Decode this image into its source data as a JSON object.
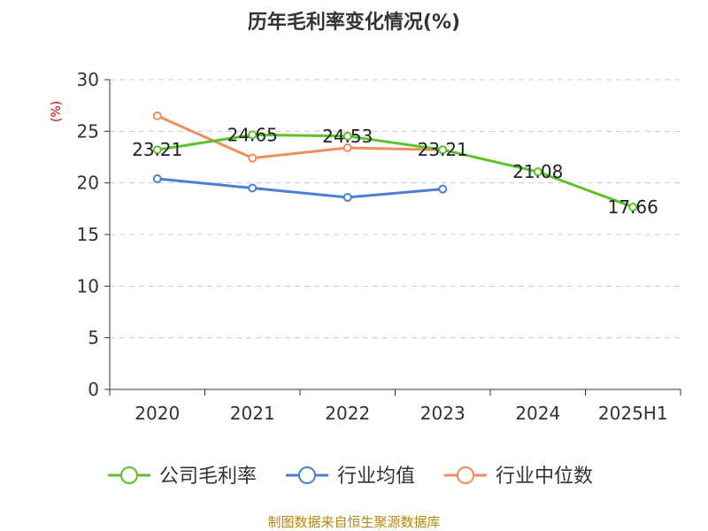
{
  "chart_data": {
    "type": "line",
    "title": "历年毛利率变化情况(%)",
    "ylabel": "(%)",
    "categories": [
      "2020",
      "2021",
      "2022",
      "2023",
      "2024",
      "2025H1"
    ],
    "ylim": [
      0,
      30
    ],
    "yticks": [
      0,
      5,
      10,
      15,
      20,
      25,
      30
    ],
    "grid": true,
    "legend_position": "bottom",
    "series": [
      {
        "name": "公司毛利率",
        "color": "#5cc22a",
        "values": [
          23.21,
          24.65,
          24.53,
          23.21,
          21.08,
          17.66
        ],
        "labels": [
          "23.21",
          "24.65",
          "24.53",
          "23.21",
          "21.08",
          "17.66"
        ]
      },
      {
        "name": "行业均值",
        "color": "#4a7fd6",
        "values": [
          20.4,
          19.5,
          18.6,
          19.4,
          null,
          null
        ]
      },
      {
        "name": "行业中位数",
        "color": "#f28c5a",
        "values": [
          26.5,
          22.4,
          23.4,
          23.2,
          null,
          null
        ]
      }
    ]
  },
  "source": "制图数据来自恒生聚源数据库"
}
